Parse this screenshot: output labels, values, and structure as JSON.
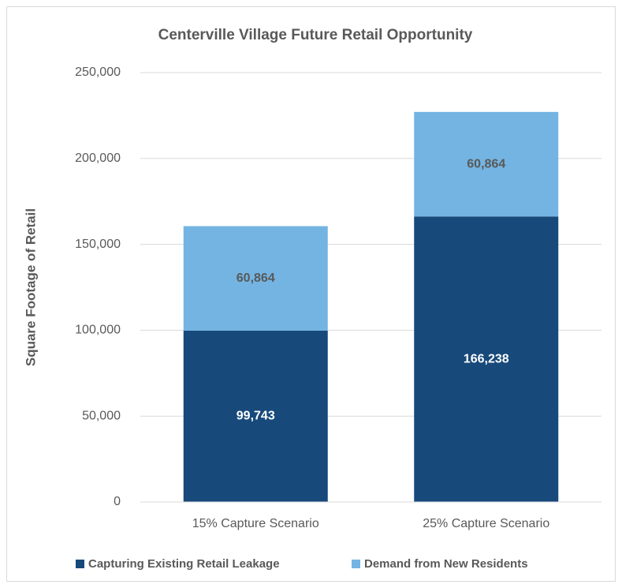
{
  "chart_data": {
    "type": "stacked_bar",
    "title": "Centerville Village Future Retail Opportunity",
    "y_label": "Square Footage of Retail",
    "categories": [
      "15% Capture Scenario",
      "25% Capture Scenario"
    ],
    "series": [
      {
        "name": "Capturing Existing Retail Leakage",
        "color": "#17497b",
        "label_color": "#ffffff",
        "values": [
          99743,
          166238
        ],
        "value_labels": [
          "99,743",
          "166,238"
        ]
      },
      {
        "name": "Demand from New Residents",
        "color": "#74b4e2",
        "label_color": "#595959",
        "values": [
          60864,
          60864
        ],
        "value_labels": [
          "60,864",
          "60,864"
        ]
      }
    ],
    "ylim": [
      0,
      250000
    ],
    "yticks": [
      0,
      {
        "value": 50000,
        "label": "50,000"
      },
      {
        "value": 100000,
        "label": "100,000"
      },
      {
        "value": 150000,
        "label": "150,000"
      },
      {
        "value": 200000,
        "label": "200,000"
      },
      {
        "value": 250000,
        "label": "250,000"
      }
    ],
    "grid": true,
    "legend": "bottom"
  }
}
